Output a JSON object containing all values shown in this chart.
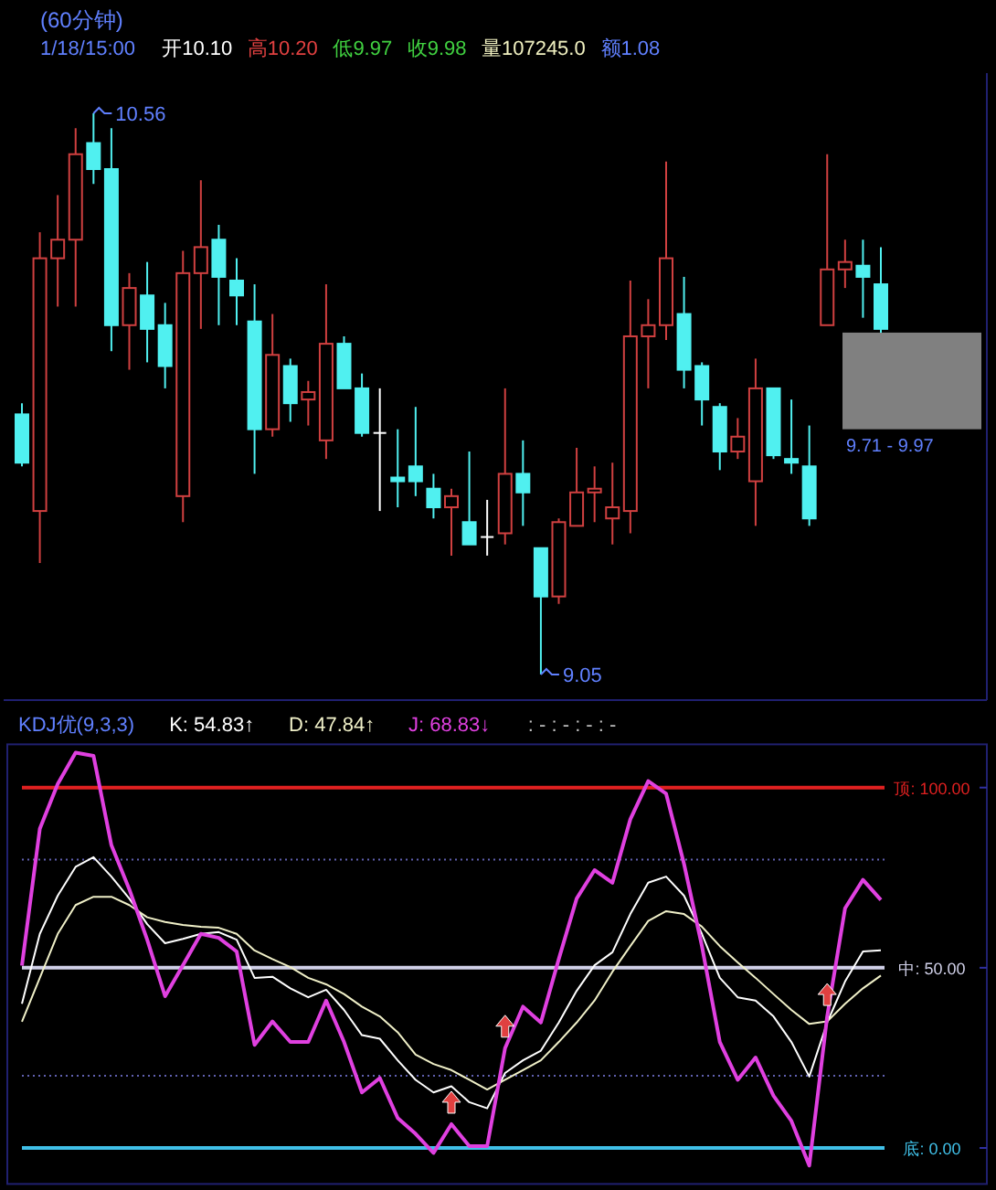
{
  "chart_data": [
    {
      "type": "candlestick",
      "title": "(60分钟)",
      "annotations": [
        "1/18/15:00",
        "开10.10",
        "高10.20",
        "低9.97",
        "收9.98",
        "量107245.0",
        "额1.08",
        "10.56",
        "9.05"
      ],
      "categories": [
        null,
        null,
        null,
        null,
        null,
        null,
        null,
        null,
        null,
        null,
        null,
        null,
        null,
        null,
        null,
        null,
        null,
        null,
        null,
        null,
        null,
        null,
        null,
        null,
        null,
        null,
        null,
        null,
        null,
        null,
        null,
        null,
        null,
        null,
        null,
        null,
        null,
        null,
        null,
        null,
        null,
        null,
        null,
        null,
        null,
        null,
        null,
        null,
        null
      ],
      "ohlc": [
        [
          9.75,
          9.78,
          9.61,
          9.62
        ],
        [
          9.49,
          10.24,
          9.35,
          10.17
        ],
        [
          10.17,
          10.34,
          10.04,
          10.22
        ],
        [
          10.22,
          10.52,
          10.04,
          10.45
        ],
        [
          10.48,
          10.56,
          10.37,
          10.41
        ],
        [
          10.41,
          10.52,
          9.92,
          9.99
        ],
        [
          9.99,
          10.13,
          9.87,
          10.09
        ],
        [
          10.07,
          10.16,
          9.89,
          9.98
        ],
        [
          9.99,
          10.05,
          9.82,
          9.88
        ],
        [
          9.53,
          10.19,
          9.46,
          10.13
        ],
        [
          10.13,
          10.38,
          9.98,
          10.2
        ],
        [
          10.22,
          10.26,
          9.99,
          10.12
        ],
        [
          10.11,
          10.17,
          9.99,
          10.07
        ],
        [
          10,
          10.1,
          9.59,
          9.71
        ],
        [
          9.71,
          10.02,
          9.69,
          9.91
        ],
        [
          9.88,
          9.9,
          9.73,
          9.78
        ],
        [
          9.79,
          9.84,
          9.72,
          9.81
        ],
        [
          9.68,
          10.1,
          9.63,
          9.94
        ],
        [
          9.94,
          9.96,
          9.82,
          9.82
        ],
        [
          9.82,
          9.86,
          9.69,
          9.7
        ],
        [
          9.7,
          9.82,
          9.49,
          9.7
        ],
        [
          9.58,
          9.71,
          9.5,
          9.57
        ],
        [
          9.61,
          9.77,
          9.53,
          9.57
        ],
        [
          9.55,
          9.59,
          9.47,
          9.5
        ],
        [
          9.5,
          9.55,
          9.37,
          9.53
        ],
        [
          9.46,
          9.65,
          9.4,
          9.4
        ],
        [
          9.42,
          9.52,
          9.37,
          9.42
        ],
        [
          9.43,
          9.82,
          9.4,
          9.59
        ],
        [
          9.59,
          9.68,
          9.45,
          9.54
        ],
        [
          9.39,
          9.39,
          9.05,
          9.26
        ],
        [
          9.26,
          9.47,
          9.24,
          9.46
        ],
        [
          9.45,
          9.66,
          9.45,
          9.54
        ],
        [
          9.54,
          9.61,
          9.46,
          9.55
        ],
        [
          9.47,
          9.62,
          9.4,
          9.5
        ],
        [
          9.49,
          10.11,
          9.43,
          9.96
        ],
        [
          9.96,
          10.06,
          9.82,
          9.99
        ],
        [
          9.99,
          10.43,
          9.95,
          10.17
        ],
        [
          10.02,
          10.12,
          9.82,
          9.87
        ],
        [
          9.88,
          9.89,
          9.72,
          9.79
        ],
        [
          9.77,
          9.78,
          9.6,
          9.65
        ],
        [
          9.65,
          9.74,
          9.63,
          9.69
        ],
        [
          9.57,
          9.9,
          9.45,
          9.82
        ],
        [
          9.82,
          9.82,
          9.63,
          9.64
        ],
        [
          9.63,
          9.79,
          9.59,
          9.62
        ],
        [
          9.61,
          9.72,
          9.45,
          9.47
        ],
        [
          9.99,
          10.45,
          9.99,
          10.14
        ],
        [
          10.14,
          10.22,
          10.09,
          10.16
        ],
        [
          10.15,
          10.22,
          10.01,
          10.12
        ],
        [
          10.1,
          10.2,
          9.97,
          9.98
        ]
      ],
      "bands": [
        {
          "axis": "y",
          "from": 9.71,
          "to": 9.97,
          "label": "9.71 - 9.97",
          "color": "#808080"
        }
      ]
    },
    {
      "type": "line",
      "title": "KDJ优(9,3,3)",
      "legend": "top",
      "annotations": [
        ": - : - : - : -"
      ],
      "ylim": [
        -10,
        112
      ],
      "yticks": [
        {
          "value": 0,
          "label": "底: 0.00"
        },
        {
          "value": 50,
          "label": "中: 50.00"
        },
        {
          "value": 100,
          "label": "顶: 100.00"
        }
      ],
      "categories": [
        null,
        null,
        null,
        null,
        null,
        null,
        null,
        null,
        null,
        null,
        null,
        null,
        null,
        null,
        null,
        null,
        null,
        null,
        null,
        null,
        null,
        null,
        null,
        null,
        null,
        null,
        null,
        null,
        null,
        null,
        null,
        null,
        null,
        null,
        null,
        null,
        null,
        null,
        null,
        null,
        null,
        null,
        null,
        null,
        null,
        null,
        null,
        null,
        null
      ],
      "series": [
        {
          "name": "K: 54.83↑",
          "color": "#ffffff",
          "values": [
            40,
            59.4,
            70,
            78,
            80.7,
            75.3,
            69.2,
            62.1,
            56.8,
            58,
            59.4,
            59.9,
            57.8,
            47.2,
            47.5,
            44.3,
            41.8,
            43.9,
            38.3,
            31.3,
            30.3,
            24.3,
            18.9,
            15.4,
            17.1,
            12.7,
            11,
            20.8,
            24.3,
            27,
            34.8,
            43.6,
            50.7,
            54.3,
            64.9,
            73.6,
            75.3,
            70,
            59.4,
            47.2,
            41.8,
            40.9,
            36.5,
            29.4,
            19.8,
            34.8,
            46.2,
            54.5,
            54.83
          ]
        },
        {
          "name": "D: 47.84↑",
          "color": "#f0f0c8",
          "values": [
            35,
            47.2,
            59.4,
            67.4,
            69.7,
            69.7,
            67.4,
            64,
            62.7,
            61.9,
            61.4,
            61.1,
            59.4,
            54.8,
            52.4,
            50.2,
            47.2,
            45.4,
            42.7,
            39.2,
            36.5,
            32.1,
            25.9,
            23.3,
            21.6,
            18.9,
            16.2,
            18.9,
            21.6,
            24.3,
            29.4,
            34.8,
            40.9,
            48.9,
            56,
            63,
            65.7,
            64.9,
            61.4,
            56,
            51.5,
            47.2,
            42.7,
            38.3,
            34.4,
            35.1,
            40,
            44.3,
            47.84
          ]
        },
        {
          "name": "J: 68.83↓",
          "color": "#e040e0",
          "values": [
            50.6,
            88.6,
            101,
            109.7,
            108.8,
            84,
            71.8,
            57.8,
            42.1,
            50.7,
            59.4,
            58.3,
            54.5,
            28.6,
            35.1,
            29.4,
            29.4,
            40.9,
            29.4,
            15.4,
            19.4,
            8.3,
            3.9,
            -1.4,
            6.6,
            0.5,
            0.5,
            27.7,
            39.2,
            34.8,
            52.4,
            69.2,
            77.1,
            73.6,
            91.2,
            101.8,
            98.3,
            78.8,
            56,
            29.4,
            18.9,
            25.1,
            14.5,
            7.5,
            -4.9,
            36.5,
            66.5,
            74.4,
            68.83
          ]
        }
      ],
      "ref_lines": [
        {
          "axis": "y",
          "value": 50,
          "label": null,
          "color": "#d0d0e8"
        },
        {
          "axis": "y",
          "value": 100,
          "label": null,
          "color": "#e02020"
        },
        {
          "axis": "y",
          "value": 0,
          "label": null,
          "color": "#40c0e8"
        },
        {
          "axis": "y",
          "value": 80,
          "label": null,
          "color": "#6060b0",
          "line_style": "dotted"
        },
        {
          "axis": "y",
          "value": 20,
          "label": null,
          "color": "#6060b0",
          "line_style": "dotted"
        }
      ]
    }
  ]
}
